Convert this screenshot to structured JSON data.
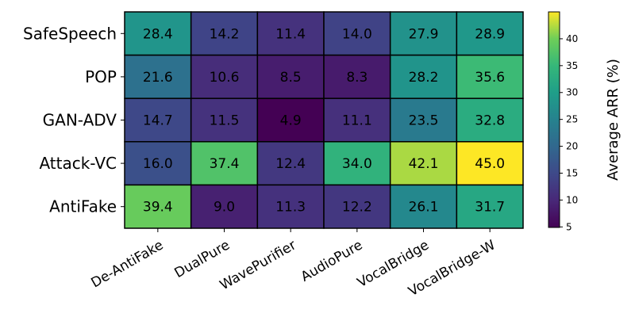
{
  "chart_data": {
    "type": "heatmap",
    "title": "",
    "rows": [
      "SafeSpeech",
      "POP",
      "GAN-ADV",
      "Attack-VC",
      "AntiFake"
    ],
    "columns": [
      "De-AntiFake",
      "DualPure",
      "WavePurifier",
      "AudioPure",
      "VocalBridge",
      "VocalBridge-W"
    ],
    "values": [
      [
        28.4,
        14.2,
        11.4,
        14.0,
        27.9,
        28.9
      ],
      [
        21.6,
        10.6,
        8.5,
        8.3,
        28.2,
        35.6
      ],
      [
        14.7,
        11.5,
        4.9,
        11.1,
        23.5,
        32.8
      ],
      [
        16.0,
        37.4,
        12.4,
        34.0,
        42.1,
        45.0
      ],
      [
        39.4,
        9.0,
        11.3,
        12.2,
        26.1,
        31.7
      ]
    ],
    "colormap": "viridis",
    "colorbar": {
      "label": "Average ARR (%)",
      "range": [
        4.9,
        45.0
      ],
      "ticks": [
        5,
        10,
        15,
        20,
        25,
        30,
        35,
        40
      ]
    }
  }
}
